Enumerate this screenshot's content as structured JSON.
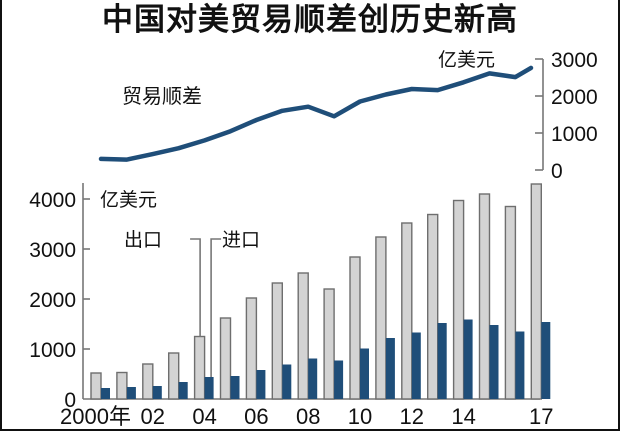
{
  "title": "中国对美贸易顺差创历史新高",
  "colors": {
    "line": "#1f4e79",
    "export_fill": "#d3d3d3",
    "export_stroke": "#6e6e6e",
    "import_fill": "#1f4e79",
    "axis": "#777777",
    "text": "#111111"
  },
  "chart_data": [
    {
      "type": "line",
      "title": "中国对美贸易顺差创历史新高",
      "series_label": "贸易顺差",
      "unit_label": "亿美元",
      "x": [
        2000,
        2001,
        2002,
        2003,
        2004,
        2005,
        2006,
        2007,
        2008,
        2009,
        2010,
        2011,
        2012,
        2013,
        2014,
        2015,
        2016,
        2017
      ],
      "series": [
        {
          "name": "贸易顺差",
          "values": [
            300,
            280,
            430,
            590,
            800,
            1050,
            1350,
            1600,
            1710,
            1450,
            1850,
            2040,
            2190,
            2160,
            2370,
            2610,
            2510,
            2760
          ]
        }
      ],
      "ylim": [
        0,
        3000
      ],
      "yticks": [
        0,
        1000,
        2000,
        3000
      ],
      "ytick_labels": [
        "0",
        "1000",
        "2000",
        "3000"
      ],
      "yaxis_position": "right",
      "grid": false
    },
    {
      "type": "bar",
      "unit_label": "亿美元",
      "categories": [
        "2000",
        "2001",
        "2002",
        "2003",
        "2004",
        "2005",
        "2006",
        "2007",
        "2008",
        "2009",
        "2010",
        "2011",
        "2012",
        "2013",
        "2014",
        "2015",
        "2016",
        "2017"
      ],
      "series": [
        {
          "name": "出口",
          "values": [
            520,
            530,
            700,
            920,
            1250,
            1620,
            2020,
            2320,
            2520,
            2200,
            2840,
            3240,
            3520,
            3690,
            3970,
            4100,
            3850,
            4300
          ]
        },
        {
          "name": "进口",
          "values": [
            220,
            240,
            260,
            340,
            440,
            460,
            580,
            690,
            810,
            770,
            1010,
            1220,
            1330,
            1520,
            1590,
            1480,
            1350,
            1540
          ]
        }
      ],
      "ylim": [
        0,
        4000
      ],
      "yticks": [
        0,
        1000,
        2000,
        3000,
        4000
      ],
      "ytick_labels": [
        "0",
        "1000",
        "2000",
        "3000",
        "4000"
      ],
      "xtick_labels": [
        {
          "index": 0,
          "label": "2000年"
        },
        {
          "index": 2,
          "label": "02"
        },
        {
          "index": 4,
          "label": "04"
        },
        {
          "index": 6,
          "label": "06"
        },
        {
          "index": 8,
          "label": "08"
        },
        {
          "index": 10,
          "label": "10"
        },
        {
          "index": 12,
          "label": "12"
        },
        {
          "index": 14,
          "label": "14"
        },
        {
          "index": 17,
          "label": "17"
        }
      ],
      "annotations": [
        {
          "text": "出口",
          "target_series": "出口",
          "target_index": 4
        },
        {
          "text": "进口",
          "target_series": "进口",
          "target_index": 4
        }
      ],
      "yaxis_position": "left",
      "grid": false,
      "legend": "leader-line labels"
    }
  ]
}
